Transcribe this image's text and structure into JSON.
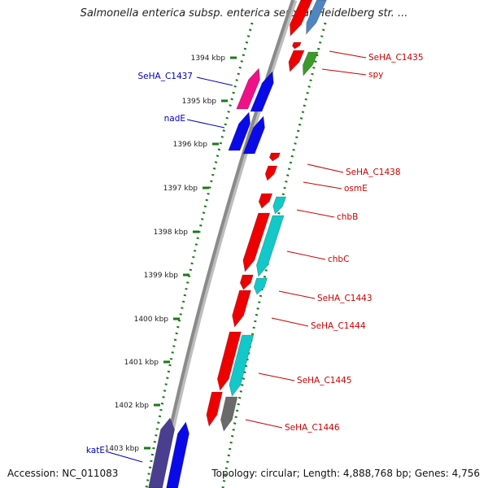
{
  "title": "Salmonella enterica subsp. enterica serovar Heidelberg str. ...",
  "accession": "Accession: NC_011083",
  "topology": "Topology: circular; Length: 4,888,768 bp; Genes: 4,756",
  "colors": {
    "backbone": "#8a8a8a",
    "tick": "#1a7a1a",
    "label_reverse": "#0000bb",
    "label_forward": "#cc0000",
    "gene_red": "#ee0000",
    "gene_blue": "#0a0ae8",
    "gene_cyan": "#12c8c8",
    "gene_magenta": "#ee1188",
    "gene_navy": "#4a3f8f",
    "gene_gray": "#6a6a6a",
    "gene_steel": "#4f86c0"
  },
  "ticks": [
    {
      "label": "1394 kbp"
    },
    {
      "label": "1395 kbp"
    },
    {
      "label": "1396 kbp"
    },
    {
      "label": "1397 kbp"
    },
    {
      "label": "1398 kbp"
    },
    {
      "label": "1399 kbp"
    },
    {
      "label": "1400 kbp"
    },
    {
      "label": "1401 kbp"
    },
    {
      "label": "1402 kbp"
    },
    {
      "label": "1403 kbp"
    }
  ],
  "gene_labels": {
    "reverse": [
      "SeHA_C1437",
      "nadE",
      "katE"
    ],
    "forward": [
      "SeHA_C1435",
      "spy",
      "SeHA_C1438",
      "osmE",
      "chbB",
      "chbC",
      "SeHA_C1443",
      "SeHA_C1444",
      "SeHA_C1445",
      "SeHA_C1446"
    ]
  }
}
